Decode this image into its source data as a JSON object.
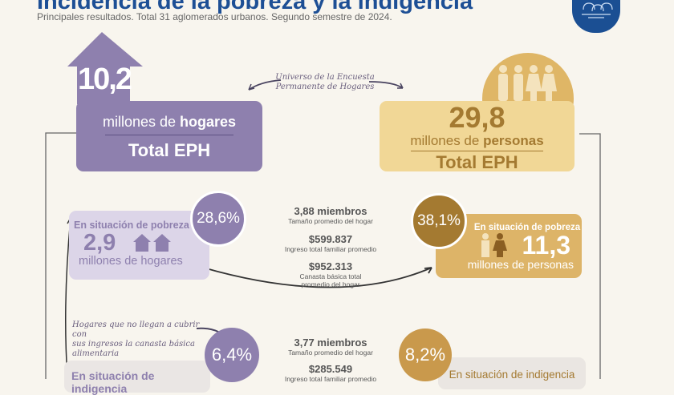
{
  "header": {
    "title": "Incidencia de la pobreza y la indigencia",
    "subtitle": "Principales resultados. Total 31 aglomerados urbanos. Segundo semestre de 2024."
  },
  "logo": {
    "icon": "people-computer-icon",
    "color": "#1b4f93"
  },
  "universe_note": [
    "Universo de la Encuesta",
    "Permanente de Hogares"
  ],
  "households": {
    "value": "10,2",
    "unit_pre": "millones de ",
    "unit_bold": "hogares",
    "label": "Total EPH",
    "color": "#8e80ae"
  },
  "persons": {
    "value": "29,8",
    "unit_pre": "millones de ",
    "unit_bold": "personas",
    "label": "Total EPH",
    "color": "#f1d796",
    "accent": "#a47a31"
  },
  "poverty": {
    "households": {
      "title": "En situación de pobreza",
      "value": "2,9",
      "unit": "millones de hogares",
      "percent": "28,6%"
    },
    "persons": {
      "title": "En situación de pobreza",
      "value": "11,3",
      "unit": "millones de personas",
      "percent": "38,1%"
    },
    "stats": [
      {
        "value": "3,88 miembros",
        "label": "Tamaño promedio del hogar"
      },
      {
        "value": "$599.837",
        "label": "Ingreso total familiar promedio"
      },
      {
        "value": "$952.313",
        "label": "Canasta básica total",
        "label2": "promedio del hogar"
      }
    ]
  },
  "indigence": {
    "note": [
      "Hogares que no llegan a cubrir con",
      "sus ingresos la canasta básica",
      "alimentaria"
    ],
    "households": {
      "title": "En situación de indigencia",
      "percent": "6,4%"
    },
    "persons": {
      "title": "En situación de indigencia",
      "percent": "8,2%"
    },
    "stats": [
      {
        "value": "3,77 miembros",
        "label": "Tamaño promedio del hogar"
      },
      {
        "value": "$285.549",
        "label": "Ingreso total familiar promedio"
      }
    ]
  }
}
